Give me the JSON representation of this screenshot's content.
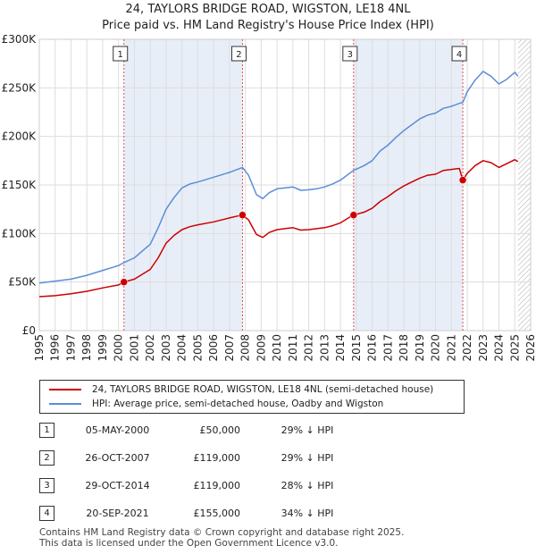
{
  "title": "24, TAYLORS BRIDGE ROAD, WIGSTON, LE18 4NL",
  "subtitle": "Price paid vs. HM Land Registry's House Price Index (HPI)",
  "chart_data": {
    "type": "line",
    "title": "24, TAYLORS BRIDGE ROAD, WIGSTON, LE18 4NL",
    "subtitle": "Price paid vs. HM Land Registry's House Price Index (HPI)",
    "xlim": [
      1995,
      2026
    ],
    "ylim": [
      0,
      300000
    ],
    "x_ticks": [
      1995,
      1996,
      1997,
      1998,
      1999,
      2000,
      2001,
      2002,
      2003,
      2004,
      2005,
      2006,
      2007,
      2008,
      2009,
      2010,
      2011,
      2012,
      2013,
      2014,
      2015,
      2016,
      2017,
      2018,
      2019,
      2020,
      2021,
      2022,
      2023,
      2024,
      2025,
      2026
    ],
    "y_ticks": [
      0,
      50000,
      100000,
      150000,
      200000,
      250000,
      300000
    ],
    "y_tick_labels": [
      "£0",
      "£50K",
      "£100K",
      "£150K",
      "£200K",
      "£250K",
      "£300K"
    ],
    "colors": {
      "property": "#cc0000",
      "hpi": "#5b8ed6",
      "shade": "#e8eef8",
      "vline": "#e05050",
      "grid": "#dddddd",
      "hatch": "#aaaaaa"
    },
    "series": [
      {
        "name": "24, TAYLORS BRIDGE ROAD, WIGSTON, LE18 4NL (semi-detached house)",
        "color": "#cc0000",
        "x": [
          1995.0,
          1996.0,
          1997.0,
          1998.0,
          1999.0,
          2000.0,
          2000.34,
          2001.0,
          2002.0,
          2002.5,
          2003.0,
          2003.5,
          2004.0,
          2004.5,
          2005.0,
          2006.0,
          2007.0,
          2007.5,
          2007.82,
          2008.2,
          2008.7,
          2009.1,
          2009.5,
          2010.0,
          2010.5,
          2011.0,
          2011.5,
          2012.0,
          2012.5,
          2013.0,
          2013.5,
          2014.0,
          2014.5,
          2014.83,
          2015.5,
          2016.0,
          2016.5,
          2017.0,
          2017.5,
          2018.0,
          2018.5,
          2019.0,
          2019.5,
          2020.0,
          2020.5,
          2021.0,
          2021.5,
          2021.72,
          2022.0,
          2022.5,
          2023.0,
          2023.5,
          2024.0,
          2024.5,
          2025.0,
          2025.2
        ],
        "y": [
          35000,
          36000,
          38000,
          40500,
          44000,
          47000,
          50000,
          53000,
          63000,
          75000,
          90000,
          98000,
          104000,
          107000,
          109000,
          112000,
          116000,
          118000,
          119000,
          114000,
          99000,
          96000,
          101000,
          104000,
          105000,
          106000,
          103500,
          104000,
          105000,
          106000,
          108000,
          111000,
          116000,
          119000,
          122000,
          126000,
          133000,
          138000,
          144000,
          149000,
          153000,
          157000,
          160000,
          161000,
          165000,
          166000,
          167000,
          155000,
          162000,
          170000,
          175000,
          173000,
          168000,
          172000,
          176000,
          174000
        ]
      },
      {
        "name": "HPI: Average price, semi-detached house, Oadby and Wigston",
        "color": "#5b8ed6",
        "x": [
          1995.0,
          1996.0,
          1997.0,
          1998.0,
          1999.0,
          2000.0,
          2000.34,
          2001.0,
          2002.0,
          2002.5,
          2003.0,
          2003.5,
          2004.0,
          2004.5,
          2005.0,
          2006.0,
          2007.0,
          2007.5,
          2007.82,
          2008.2,
          2008.7,
          2009.1,
          2009.5,
          2010.0,
          2010.5,
          2011.0,
          2011.5,
          2012.0,
          2012.5,
          2013.0,
          2013.5,
          2014.0,
          2014.5,
          2014.83,
          2015.5,
          2016.0,
          2016.5,
          2017.0,
          2017.5,
          2018.0,
          2018.5,
          2019.0,
          2019.5,
          2020.0,
          2020.5,
          2021.0,
          2021.5,
          2021.72,
          2022.0,
          2022.5,
          2023.0,
          2023.5,
          2024.0,
          2024.5,
          2025.0,
          2025.2
        ],
        "y": [
          49000,
          51000,
          53000,
          57000,
          62000,
          67000,
          70000,
          75000,
          89000,
          106000,
          125000,
          137000,
          147000,
          151000,
          153000,
          158000,
          163000,
          166000,
          168000,
          160000,
          140000,
          136000,
          142000,
          146000,
          147000,
          148000,
          144500,
          145000,
          146000,
          148000,
          151000,
          155000,
          161000,
          165000,
          170000,
          175000,
          185000,
          191000,
          199000,
          206000,
          212000,
          218000,
          222000,
          224000,
          229000,
          231000,
          234000,
          235000,
          246000,
          258000,
          267000,
          262000,
          254000,
          259000,
          266000,
          262000
        ]
      }
    ],
    "sales": [
      {
        "num": "1",
        "x": 2000.34,
        "y": 50000,
        "date": "05-MAY-2000",
        "price": "£50,000",
        "hpi": "29% ↓ HPI"
      },
      {
        "num": "2",
        "x": 2007.82,
        "y": 119000,
        "date": "26-OCT-2007",
        "price": "£119,000",
        "hpi": "29% ↓ HPI"
      },
      {
        "num": "3",
        "x": 2014.83,
        "y": 119000,
        "date": "29-OCT-2014",
        "price": "£119,000",
        "hpi": "28% ↓ HPI"
      },
      {
        "num": "4",
        "x": 2021.72,
        "y": 155000,
        "date": "20-SEP-2021",
        "price": "£155,000",
        "hpi": "34% ↓ HPI"
      }
    ],
    "shaded_ranges": [
      [
        2000.34,
        2007.82
      ],
      [
        2014.83,
        2021.72
      ]
    ],
    "future_hatch_from": 2025.2
  },
  "legend": {
    "property_label": "24, TAYLORS BRIDGE ROAD, WIGSTON, LE18 4NL (semi-detached house)",
    "hpi_label": "HPI: Average price, semi-detached house, Oadby and Wigston"
  },
  "sales_table": [
    {
      "num": "1",
      "date": "05-MAY-2000",
      "price": "£50,000",
      "hpi": "29% ↓ HPI"
    },
    {
      "num": "2",
      "date": "26-OCT-2007",
      "price": "£119,000",
      "hpi": "29% ↓ HPI"
    },
    {
      "num": "3",
      "date": "29-OCT-2014",
      "price": "£119,000",
      "hpi": "28% ↓ HPI"
    },
    {
      "num": "4",
      "date": "20-SEP-2021",
      "price": "£155,000",
      "hpi": "34% ↓ HPI"
    }
  ],
  "footer": {
    "line1": "Contains HM Land Registry data © Crown copyright and database right 2025.",
    "line2": "This data is licensed under the Open Government Licence v3.0."
  }
}
